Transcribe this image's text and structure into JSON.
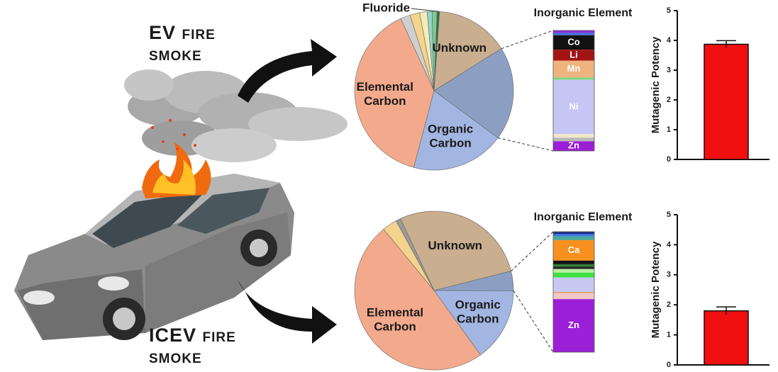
{
  "ev_label": {
    "lines": [
      "EV fire",
      "smoke"
    ]
  },
  "icev_label": {
    "lines": [
      "ICEV fire",
      "smoke"
    ]
  },
  "chart_data": [
    {
      "type": "pie",
      "categories": [
        "Unknown",
        null,
        "Organic Carbon",
        "Elemental Carbon",
        null,
        null,
        null,
        null,
        null,
        "Fluoride"
      ],
      "values": [
        15,
        19,
        19,
        39,
        2,
        2,
        1.5,
        1,
        1,
        0.5
      ],
      "colors": [
        "#c9ae8f",
        "#8c9fc3",
        "#a3b6e2",
        "#f3aa8c",
        "#cfcfcf",
        "#f4d48c",
        "#f6ecb8",
        "#92d5cb",
        "#80c98d",
        "#2f6f4f"
      ]
    },
    {
      "type": "stacked_bar",
      "title": "Inorganic Element",
      "series": [
        {
          "name": null,
          "color": "#8a2be2",
          "values": [
            2
          ]
        },
        {
          "name": null,
          "color": "#4a6fd8",
          "values": [
            2
          ]
        },
        {
          "name": "Co",
          "color": "#111111",
          "values": [
            12
          ]
        },
        {
          "name": "Li",
          "color": "#a31515",
          "values": [
            9
          ]
        },
        {
          "name": "Mn",
          "color": "#efb47e",
          "values": [
            14
          ]
        },
        {
          "name": null,
          "color": "#7fd67f",
          "values": [
            2
          ]
        },
        {
          "name": "Ni",
          "color": "#c6c6f5",
          "values": [
            45
          ]
        },
        {
          "name": null,
          "color": "#f2e6c8",
          "values": [
            3
          ]
        },
        {
          "name": null,
          "color": "#b9b9b9",
          "values": [
            3
          ]
        },
        {
          "name": "Zn",
          "color": "#9b1fd6",
          "values": [
            8
          ]
        }
      ]
    },
    {
      "type": "bar",
      "ylabel": "Mutagenic Potency",
      "values": [
        3.87
      ],
      "errors": [
        0.12
      ],
      "color": "#f01010",
      "ylim": [
        0,
        5
      ],
      "yticks": [
        0,
        1,
        2,
        3,
        4,
        5
      ]
    },
    {
      "type": "pie",
      "categories": [
        "Unknown",
        null,
        "Organic Carbon",
        "Elemental Carbon",
        null,
        null
      ],
      "values": [
        28,
        4,
        15,
        49,
        3,
        1
      ],
      "colors": [
        "#c9ae8f",
        "#8c9fc3",
        "#a3b6e2",
        "#f3aa8c",
        "#f4d48c",
        "#9a9a9a"
      ]
    },
    {
      "type": "stacked_bar",
      "title": "Inorganic Element",
      "series": [
        {
          "name": null,
          "color": "#1a2f8a",
          "values": [
            2
          ]
        },
        {
          "name": null,
          "color": "#3f7be0",
          "values": [
            2
          ]
        },
        {
          "name": null,
          "color": "#49a99a",
          "values": [
            3
          ]
        },
        {
          "name": "Ca",
          "color": "#f7901e",
          "values": [
            17
          ]
        },
        {
          "name": null,
          "color": "#111111",
          "values": [
            3
          ]
        },
        {
          "name": null,
          "color": "#2e7d32",
          "values": [
            2
          ]
        },
        {
          "name": null,
          "color": "#222222",
          "values": [
            2
          ]
        },
        {
          "name": null,
          "color": "#b9f0a0",
          "values": [
            3
          ]
        },
        {
          "name": null,
          "color": "#3ee03e",
          "values": [
            4
          ]
        },
        {
          "name": null,
          "color": "#c8c8f2",
          "values": [
            12
          ]
        },
        {
          "name": null,
          "color": "#e0a060",
          "values": [
            1
          ]
        },
        {
          "name": null,
          "color": "#f2c7c7",
          "values": [
            5
          ]
        },
        {
          "name": "Zn",
          "color": "#9b1fd6",
          "values": [
            44
          ]
        }
      ]
    },
    {
      "type": "bar",
      "ylabel": "Mutagenic Potency",
      "values": [
        1.8
      ],
      "errors": [
        0.13
      ],
      "color": "#f01010",
      "ylim": [
        0,
        5
      ],
      "yticks": [
        0,
        1,
        2,
        3,
        4,
        5
      ]
    }
  ]
}
